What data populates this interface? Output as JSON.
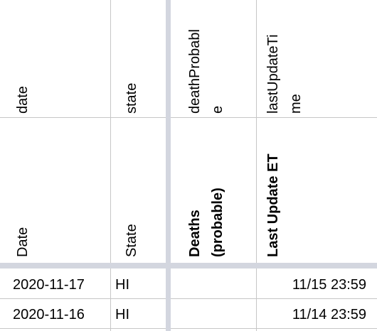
{
  "sheet": {
    "header_row1": [
      [
        "date"
      ],
      [
        "state"
      ],
      [
        "deathProbabl",
        "e"
      ],
      [
        "lastUpdateTi",
        "me"
      ]
    ],
    "header_row2": [
      [
        "Date"
      ],
      [
        "State"
      ],
      [
        "Deaths",
        "(probable)"
      ],
      [
        "Last Update ET"
      ]
    ],
    "rows": [
      {
        "date": "2020-11-17",
        "state": "HI",
        "last_update": "11/15 23:59"
      },
      {
        "date": "2020-11-16",
        "state": "HI",
        "last_update": "11/14 23:59"
      }
    ]
  }
}
